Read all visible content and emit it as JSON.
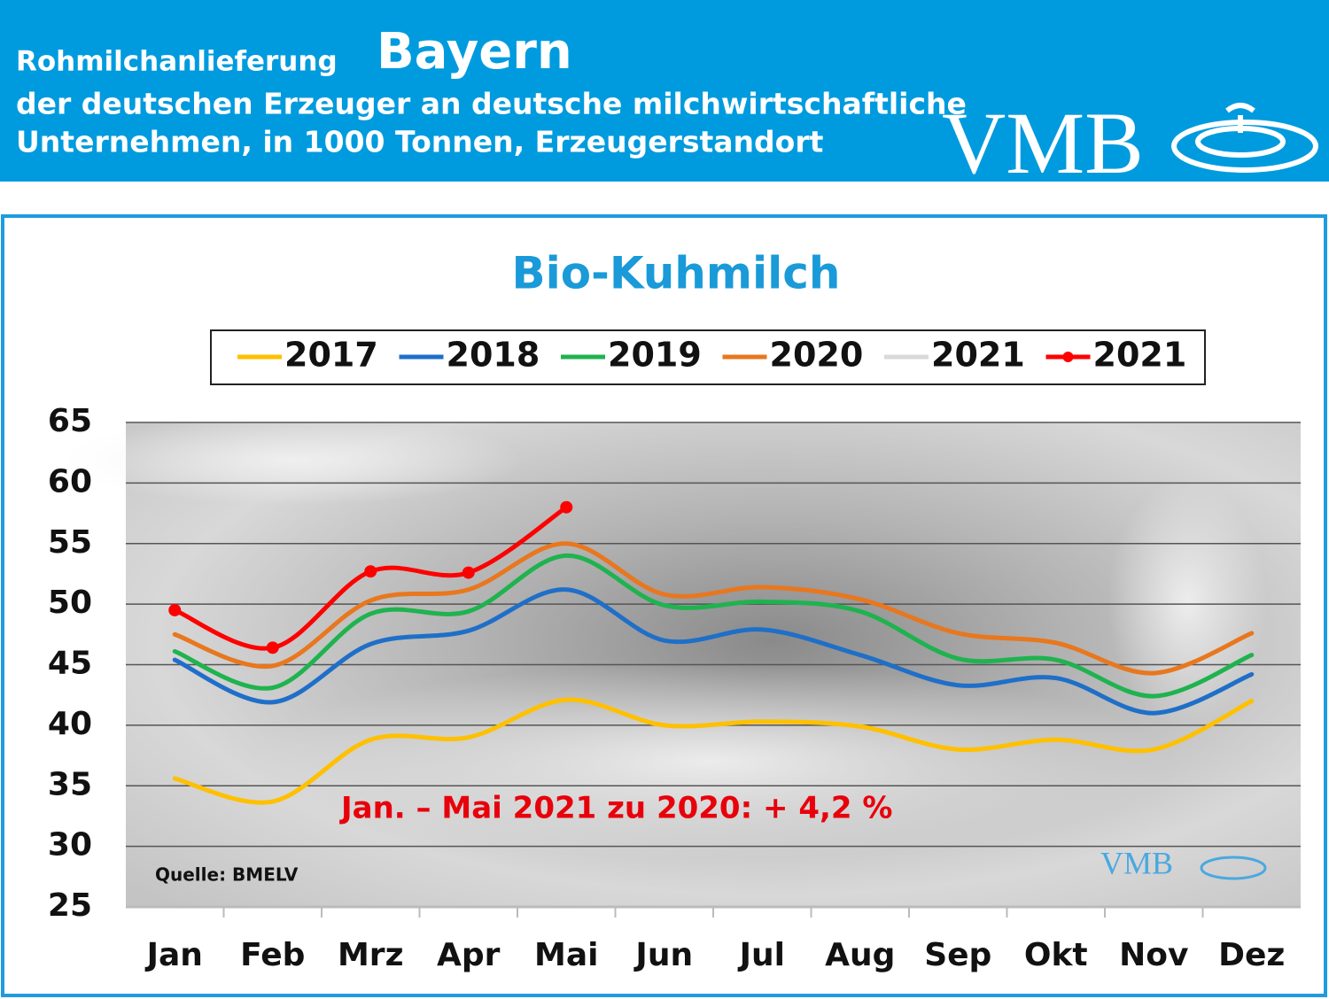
{
  "header": {
    "title_prefix": "Rohmilchanlieferung",
    "title_region": "Bayern",
    "subtitle_line1": "der deutschen Erzeuger an deutsche milchwirtschaftliche",
    "subtitle_line2": "Unternehmen, in 1000 Tonnen, Erzeugerstandort",
    "logo": "VMB"
  },
  "chart_data": {
    "type": "line",
    "title": "Bio-Kuhmilch",
    "categories": [
      "Jan",
      "Feb",
      "Mrz",
      "Apr",
      "Mai",
      "Jun",
      "Jul",
      "Aug",
      "Sep",
      "Okt",
      "Nov",
      "Dez"
    ],
    "series": [
      {
        "name": "2017",
        "color": "#ffc000",
        "values": [
          35.6,
          33.7,
          38.8,
          39.0,
          42.1,
          40.0,
          40.3,
          39.9,
          38.0,
          38.8,
          38.0,
          42.0
        ]
      },
      {
        "name": "2018",
        "color": "#1f6fc8",
        "values": [
          45.4,
          41.9,
          46.7,
          47.8,
          51.2,
          47.0,
          47.9,
          45.8,
          43.3,
          43.9,
          41.0,
          44.2
        ]
      },
      {
        "name": "2019",
        "color": "#1fb34f",
        "values": [
          46.1,
          43.1,
          49.2,
          49.4,
          54.0,
          49.9,
          50.2,
          49.4,
          45.5,
          45.4,
          42.4,
          45.8
        ]
      },
      {
        "name": "2020",
        "color": "#e8771e",
        "values": [
          47.5,
          44.9,
          50.3,
          51.2,
          55.0,
          50.8,
          51.4,
          50.4,
          47.6,
          46.8,
          44.3,
          47.6
        ]
      },
      {
        "name": "2021",
        "color": "#d9d9d9",
        "values": [
          null,
          null,
          null,
          null,
          null,
          null,
          null,
          null,
          null,
          null,
          null,
          null
        ]
      },
      {
        "name": "2021",
        "color": "#ff0000",
        "markers": true,
        "values": [
          49.5,
          46.4,
          52.7,
          52.6,
          58.0,
          null,
          null,
          null,
          null,
          null,
          null,
          null
        ]
      }
    ],
    "ylim": [
      25,
      65
    ],
    "yticks": [
      25,
      30,
      35,
      40,
      45,
      50,
      55,
      60,
      65
    ],
    "grid": true,
    "annotation": "Jan. – Mai 2021 zu 2020: + 4,2 %",
    "source": "Quelle: BMELV",
    "watermark": "VMB"
  }
}
